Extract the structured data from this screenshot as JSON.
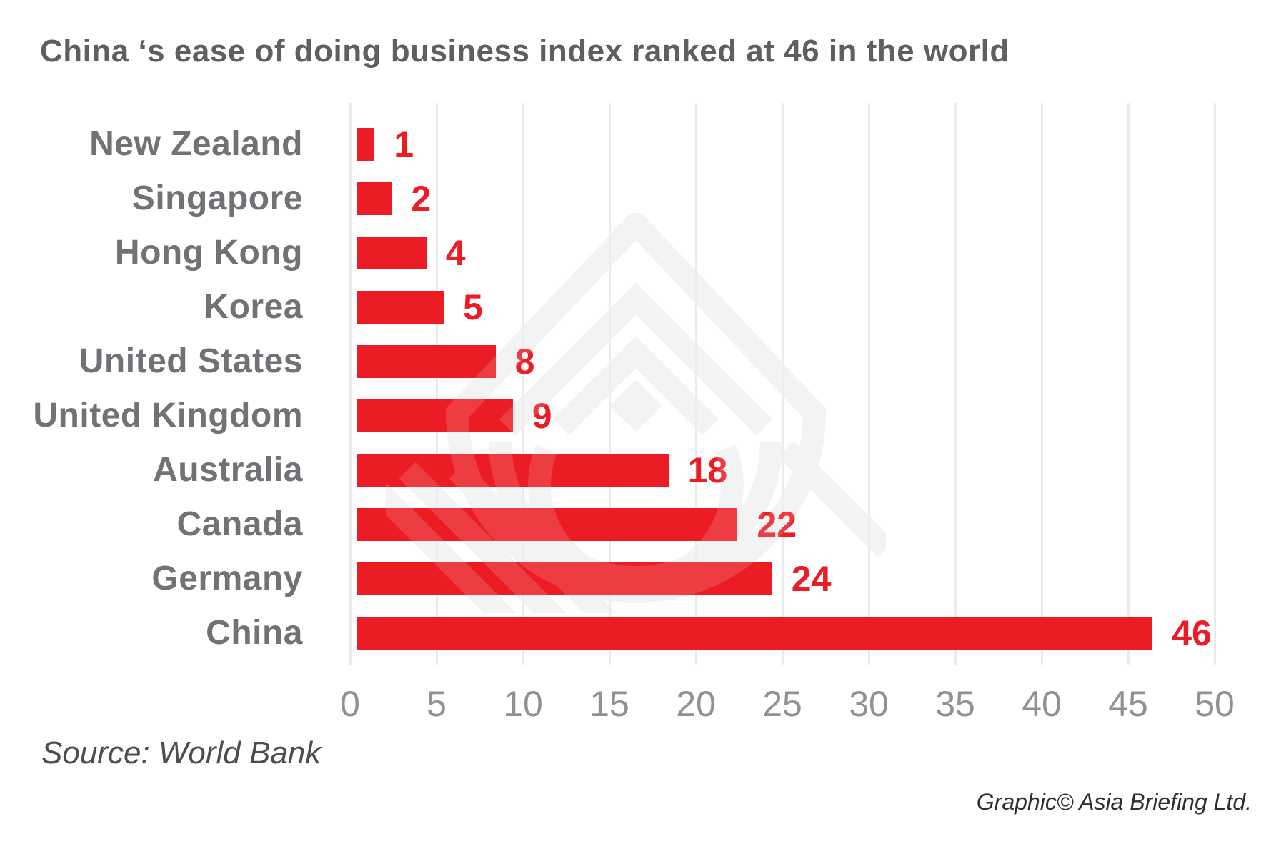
{
  "title": "China ‘s ease of doing business index ranked at 46 in the world",
  "source_note": "Source: World Bank",
  "credit_note": "Graphic© Asia Briefing Ltd.",
  "chart_data": {
    "type": "bar",
    "orientation": "horizontal",
    "title": "China ‘s ease of doing business index ranked at 46 in the world",
    "categories": [
      "New Zealand",
      "Singapore",
      "Hong Kong",
      "Korea",
      "United States",
      "United Kingdom",
      "Australia",
      "Canada",
      "Germany",
      "China"
    ],
    "values": [
      1,
      2,
      4,
      5,
      8,
      9,
      18,
      22,
      24,
      46
    ],
    "xlabel": "",
    "ylabel": "",
    "xlim": [
      0,
      50
    ],
    "xticks": [
      0,
      5,
      10,
      15,
      20,
      25,
      30,
      35,
      40,
      45,
      50
    ],
    "grid": true,
    "legend": "none",
    "value_labels_shown": true
  },
  "colors": {
    "bar": "#ec1c24",
    "value_label": "#ec1c24",
    "title_text": "#5e5f61",
    "category_label": "#717275",
    "tick_label": "#919194",
    "gridline": "#ebebeb",
    "watermark": "#f2f2f2",
    "background": "#ffffff"
  },
  "watermark_name": "asia-briefing-logo"
}
